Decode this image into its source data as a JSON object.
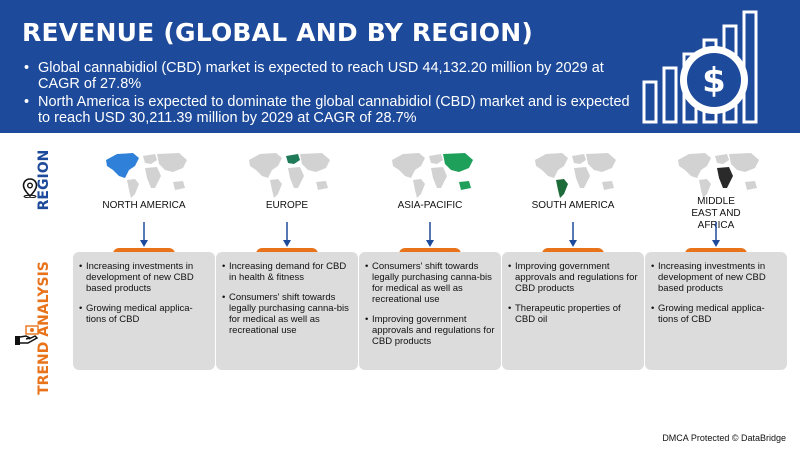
{
  "header": {
    "title": "REVENUE (GLOBAL AND BY REGION)",
    "bullets": [
      "Global cannabidiol (CBD) market is expected to reach USD 44,132.20 million by 2029 at CAGR of 27.8%",
      "North America is expected to dominate the global cannabidiol (CBD) market and is expected to reach USD 30,211.39 million by 2029 at CAGR of 28.7%"
    ],
    "icon": "dollar-growth-bars-icon"
  },
  "labels": {
    "region": "REGION",
    "trend": "TREND ANALYSIS",
    "region_icon": "location-pin-icon",
    "trend_icon": "hand-money-icon"
  },
  "colors": {
    "header_bg": "#1d4a9a",
    "accent_orange": "#e8731b",
    "map_base": "#d2d2d2",
    "box_bg": "#dcdcdc"
  },
  "regions": [
    {
      "name": "NORTH AMERICA",
      "highlight_color": "#2f80d8",
      "trends": [
        "Increasing investments in development of new CBD based products",
        "Growing medical applica-tions of CBD"
      ]
    },
    {
      "name": "EUROPE",
      "highlight_color": "#1f7a58",
      "trends": [
        "Increasing demand for CBD in health & fitness",
        "Consumers' shift towards legally purchasing canna-bis for medical as well as recreational use"
      ]
    },
    {
      "name": "ASIA-PACIFIC",
      "highlight_color": "#1fa05a",
      "trends": [
        "Consumers' shift towards legally purchasing canna-bis for medical as well as recreational use",
        "Improving government approvals and regulations for CBD products"
      ]
    },
    {
      "name": "SOUTH AMERICA",
      "highlight_color": "#1e6b3a",
      "trends": [
        "Improving government approvals and regulations for CBD products",
        "Therapeutic properties of CBD oil"
      ]
    },
    {
      "name": "MIDDLE EAST AND AFRICA",
      "highlight_color": "#2a2a2a",
      "trends": [
        "Increasing investments in development of new CBD based products",
        "Growing medical applica-tions of CBD"
      ]
    }
  ],
  "footer": "DMCA Protected © DataBridge"
}
